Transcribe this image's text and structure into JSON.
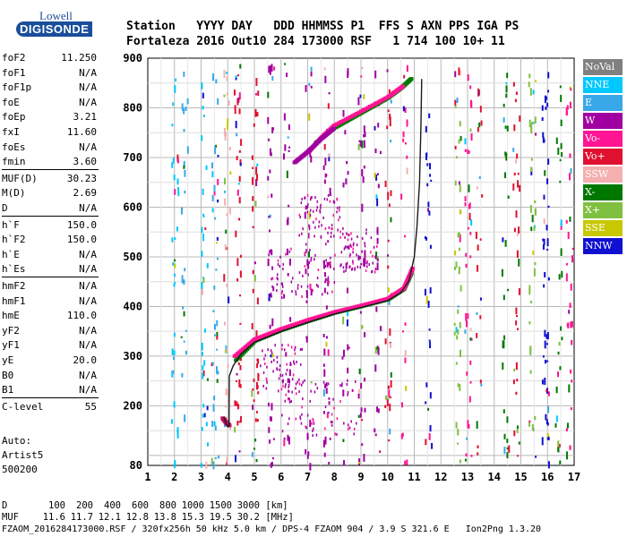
{
  "logo": {
    "line1": "Lowell",
    "line2": "DIGISONDE"
  },
  "header": {
    "labels": "Station   YYYY DAY   DDD HHMMSS P1  FFS S AXN PPS IGA PS",
    "values": "Fortaleza 2016 Out10 284 173000 RSF   1 714 100 10+ 11"
  },
  "params": [
    {
      "k": "foF2",
      "v": "11.250"
    },
    {
      "k": "foF1",
      "v": "N/A"
    },
    {
      "k": "foF1p",
      "v": "N/A"
    },
    {
      "k": "foE",
      "v": "N/A"
    },
    {
      "k": "foEp",
      "v": "3.21"
    },
    {
      "k": "fxI",
      "v": "11.60"
    },
    {
      "k": "foEs",
      "v": "N/A"
    },
    {
      "k": "fmin",
      "v": "3.60"
    },
    {
      "k": "MUF(D)",
      "v": "30.23"
    },
    {
      "k": "M(D)",
      "v": "2.69"
    },
    {
      "k": "D",
      "v": "N/A"
    },
    {
      "k": "h`F",
      "v": "150.0"
    },
    {
      "k": "h`F2",
      "v": "150.0"
    },
    {
      "k": "h`E",
      "v": "N/A"
    },
    {
      "k": "h`Es",
      "v": "N/A"
    },
    {
      "k": "hmF2",
      "v": "N/A"
    },
    {
      "k": "hmF1",
      "v": "N/A"
    },
    {
      "k": "hmE",
      "v": "110.0"
    },
    {
      "k": "yF2",
      "v": "N/A"
    },
    {
      "k": "yF1",
      "v": "N/A"
    },
    {
      "k": "yE",
      "v": "20.0"
    },
    {
      "k": "B0",
      "v": "N/A"
    },
    {
      "k": "B1",
      "v": "N/A"
    },
    {
      "k": "C-level",
      "v": "55"
    }
  ],
  "aux": {
    "line1": "Auto:",
    "line2": "Artist5",
    "line3": "500200"
  },
  "legend": [
    {
      "label": "NoVal",
      "color": "#808080"
    },
    {
      "label": "NNE",
      "color": "#00c8ff"
    },
    {
      "label": "E",
      "color": "#38a8e8"
    },
    {
      "label": "W",
      "color": "#a000a0"
    },
    {
      "label": "Vo-",
      "color": "#ff1493"
    },
    {
      "label": "Vo+",
      "color": "#e01030"
    },
    {
      "label": "SSW",
      "color": "#f4b0b0"
    },
    {
      "label": "X-",
      "color": "#007800"
    },
    {
      "label": "X+",
      "color": "#80c040"
    },
    {
      "label": "SSE",
      "color": "#c8c800"
    },
    {
      "label": "NNW",
      "color": "#1010d0"
    }
  ],
  "chart_data": {
    "type": "scatter",
    "xlim": [
      1,
      17
    ],
    "ylim": [
      80,
      900
    ],
    "x_ticks": [
      1,
      2,
      3,
      4,
      5,
      6,
      7,
      8,
      9,
      10,
      11,
      12,
      13,
      14,
      15,
      16,
      17
    ],
    "y_ticks": [
      80,
      100,
      200,
      300,
      400,
      500,
      600,
      700,
      800,
      900
    ],
    "y_tick_labels": [
      "80",
      "",
      "200",
      "300",
      "400",
      "500",
      "600",
      "700",
      "800",
      "900"
    ],
    "grid": true,
    "trace": {
      "name": "",
      "points": [
        [
          3.85,
          178
        ],
        [
          3.95,
          162
        ],
        [
          4.02,
          158
        ],
        [
          4.05,
          160
        ],
        [
          4.06,
          260
        ],
        [
          4.2,
          280
        ],
        [
          4.5,
          305
        ],
        [
          5.0,
          328
        ],
        [
          6.0,
          350
        ],
        [
          7.0,
          368
        ],
        [
          8.0,
          385
        ],
        [
          9.0,
          398
        ],
        [
          10.0,
          412
        ],
        [
          10.5,
          428
        ],
        [
          10.8,
          452
        ],
        [
          11.0,
          500
        ],
        [
          11.1,
          560
        ],
        [
          11.2,
          650
        ],
        [
          11.25,
          760
        ],
        [
          11.28,
          858
        ]
      ]
    },
    "echo_traces": [
      {
        "color": "#007800",
        "points": [
          [
            4.3,
            292
          ],
          [
            5.0,
            330
          ],
          [
            6.0,
            352
          ],
          [
            7.0,
            370
          ],
          [
            8.0,
            387
          ],
          [
            9.0,
            400
          ],
          [
            10.0,
            414
          ],
          [
            10.6,
            435
          ],
          [
            10.9,
            470
          ]
        ]
      },
      {
        "color": "#ff1493",
        "points": [
          [
            4.25,
            300
          ],
          [
            5.0,
            334
          ],
          [
            6.0,
            355
          ],
          [
            7.0,
            373
          ],
          [
            8.0,
            389
          ],
          [
            9.0,
            402
          ],
          [
            10.0,
            416
          ],
          [
            10.6,
            437
          ],
          [
            10.95,
            480
          ]
        ]
      },
      {
        "color": "#c01060",
        "points": [
          [
            3.8,
            175
          ],
          [
            3.95,
            165
          ],
          [
            4.05,
            160
          ]
        ]
      }
    ],
    "upper_traces": [
      {
        "color": "#007800",
        "points": [
          [
            7.3,
            730
          ],
          [
            8.0,
            760
          ],
          [
            8.5,
            775
          ],
          [
            9.0,
            790
          ],
          [
            9.5,
            805
          ],
          [
            10.0,
            820
          ],
          [
            10.5,
            840
          ],
          [
            10.9,
            860
          ]
        ]
      },
      {
        "color": "#ff1493",
        "points": [
          [
            7.0,
            710
          ],
          [
            7.5,
            740
          ],
          [
            8.0,
            765
          ],
          [
            9.0,
            793
          ],
          [
            10.0,
            822
          ],
          [
            10.6,
            845
          ]
        ]
      },
      {
        "color": "#a000a0",
        "points": [
          [
            6.5,
            690
          ],
          [
            7.0,
            712
          ],
          [
            7.5,
            738
          ],
          [
            8.0,
            760
          ]
        ]
      }
    ],
    "bottom_rows": {
      "D": {
        "label": "D",
        "values": [
          "100",
          "200",
          "400",
          "600",
          "800",
          "1000",
          "1500",
          "3000"
        ],
        "unit": "[km]"
      },
      "MUF": {
        "label": "MUF",
        "values": [
          "11.6",
          "11.7",
          "12.1",
          "12.8",
          "13.8",
          "15.3",
          "19.5",
          "30.2"
        ],
        "unit": "[MHz]"
      }
    }
  },
  "footer": "FZAOM_2016284173000.RSF / 320fx256h 50 kHz 5.0 km / DPS-4 FZAOM 904 / 3.9 S 321.6 E   Ion2Png 1.3.20"
}
